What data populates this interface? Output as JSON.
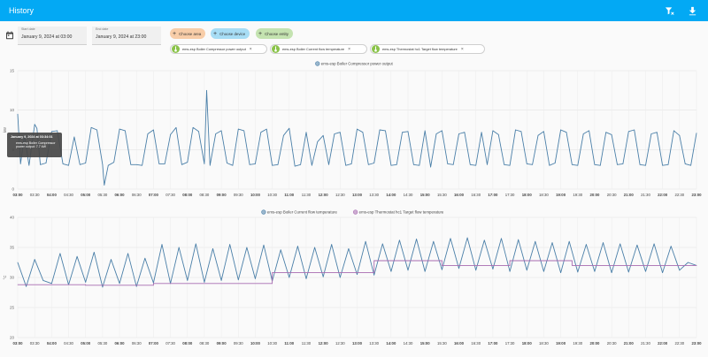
{
  "app": {
    "title": "History",
    "filter_icon": "filter-remove-icon",
    "download_icon": "download-icon"
  },
  "controls": {
    "start_label": "Start date",
    "start_value": "January 9, 2024 at 03:00",
    "end_label": "End date",
    "end_value": "January 9, 2024 at 23:00",
    "choose_area": "Choose area",
    "choose_device": "Choose device",
    "choose_entity": "Choose entity",
    "tags": [
      "ems-esp Boiler Compressor power output",
      "ems-esp Boiler Current flow temperature",
      "ems-esp Thermostat hc1 Target flow temperature"
    ],
    "colors": {
      "area": "#f8cda8",
      "device": "#a7ddf5",
      "entity": "#c4e3b0",
      "tag_icon": "#8bc34a"
    }
  },
  "tooltip": {
    "date": "January 9, 2024 at 03:34:01",
    "line1": "ems-esp Boiler Compressor",
    "line2": "power output: 7.7 kW"
  },
  "chart_data": [
    {
      "type": "line",
      "title": "",
      "ylabel": "kW",
      "ylim": [
        0,
        15
      ],
      "yticks": [
        "0",
        "5",
        "10",
        "15"
      ],
      "xlim": [
        "03:00",
        "23:00"
      ],
      "xticks": [
        "03:00",
        "03:30",
        "04:00",
        "04:30",
        "05:00",
        "05:30",
        "06:00",
        "06:30",
        "07:00",
        "07:30",
        "08:00",
        "08:30",
        "09:00",
        "09:30",
        "10:00",
        "10:30",
        "11:00",
        "11:30",
        "12:00",
        "12:30",
        "13:00",
        "13:30",
        "14:00",
        "14:30",
        "15:00",
        "15:30",
        "16:00",
        "16:30",
        "17:00",
        "17:30",
        "18:00",
        "18:30",
        "19:00",
        "19:30",
        "20:00",
        "20:30",
        "21:00",
        "21:30",
        "22:00",
        "22:30",
        "23:00"
      ],
      "bold_ticks": [
        "03:00",
        "04:00",
        "05:00",
        "06:00",
        "07:00",
        "08:00",
        "09:00",
        "10:00",
        "11:00",
        "12:00",
        "13:00",
        "14:00",
        "15:00",
        "16:00",
        "17:00",
        "18:00",
        "19:00",
        "20:00",
        "21:00",
        "22:00",
        "23:00"
      ],
      "grid": true,
      "series": [
        {
          "name": "ems-esp Boiler Compressor power output",
          "color": "#4a7fa8",
          "x": [
            "03:00",
            "03:05",
            "03:12",
            "03:20",
            "03:30",
            "03:34",
            "03:40",
            "03:50",
            "04:00",
            "04:10",
            "04:20",
            "04:30",
            "04:40",
            "04:50",
            "05:00",
            "05:10",
            "05:20",
            "05:30",
            "05:33",
            "05:40",
            "05:50",
            "06:00",
            "06:10",
            "06:20",
            "06:30",
            "06:40",
            "06:50",
            "07:00",
            "07:10",
            "07:20",
            "07:30",
            "07:40",
            "07:50",
            "08:00",
            "08:10",
            "08:20",
            "08:30",
            "08:34",
            "08:40",
            "08:50",
            "09:00",
            "09:10",
            "09:20",
            "09:30",
            "09:40",
            "09:50",
            "10:00",
            "10:10",
            "10:20",
            "10:30",
            "10:40",
            "10:50",
            "11:00",
            "11:10",
            "11:20",
            "11:30",
            "11:40",
            "11:50",
            "12:00",
            "12:10",
            "12:20",
            "12:30",
            "12:40",
            "12:50",
            "13:00",
            "13:10",
            "13:20",
            "13:30",
            "13:40",
            "13:50",
            "14:00",
            "14:10",
            "14:20",
            "14:30",
            "14:40",
            "14:50",
            "15:00",
            "15:10",
            "15:20",
            "15:30",
            "15:40",
            "15:50",
            "16:00",
            "16:10",
            "16:20",
            "16:30",
            "16:40",
            "16:50",
            "17:00",
            "17:10",
            "17:20",
            "17:30",
            "17:40",
            "17:50",
            "18:00",
            "18:10",
            "18:20",
            "18:30",
            "18:40",
            "18:50",
            "19:00",
            "19:10",
            "19:20",
            "19:30",
            "19:40",
            "19:50",
            "20:00",
            "20:10",
            "20:20",
            "20:30",
            "20:40",
            "20:50",
            "21:00",
            "21:10",
            "21:20",
            "21:30",
            "21:40",
            "21:50",
            "22:00",
            "22:10",
            "22:20",
            "22:30",
            "22:40",
            "22:50",
            "23:00"
          ],
          "y": [
            9.5,
            3.2,
            6.8,
            3.0,
            8.2,
            7.7,
            3.1,
            3.3,
            7.3,
            7.4,
            3.2,
            3.0,
            6.6,
            3.1,
            3.3,
            7.8,
            7.5,
            3.1,
            0.5,
            3.0,
            3.4,
            7.6,
            7.4,
            3.1,
            3.1,
            3.0,
            7.0,
            7.5,
            3.2,
            3.2,
            6.9,
            7.8,
            3.1,
            3.4,
            7.8,
            7.3,
            3.2,
            12.5,
            3.0,
            7.0,
            7.4,
            3.3,
            3.0,
            7.6,
            7.4,
            3.1,
            3.2,
            7.2,
            7.6,
            3.0,
            3.1,
            6.8,
            7.7,
            2.9,
            3.1,
            7.2,
            3.0,
            6.0,
            6.8,
            3.1,
            7.0,
            7.2,
            3.0,
            3.2,
            7.6,
            7.2,
            3.1,
            3.3,
            7.5,
            7.4,
            3.0,
            3.1,
            7.2,
            7.3,
            3.1,
            3.0,
            7.4,
            2.8,
            7.0,
            7.4,
            3.2,
            3.1,
            7.0,
            7.2,
            3.1,
            3.0,
            7.2,
            3.1,
            7.4,
            6.9,
            3.1,
            3.0,
            7.5,
            7.3,
            3.2,
            3.1,
            6.8,
            7.3,
            3.0,
            3.3,
            7.5,
            7.2,
            3.1,
            3.0,
            7.0,
            7.4,
            3.1,
            3.0,
            7.2,
            6.9,
            3.1,
            3.2,
            7.3,
            7.5,
            3.1,
            3.0,
            7.0,
            7.2,
            3.0,
            3.1,
            7.4,
            6.8,
            3.2,
            3.0,
            7.1
          ]
        }
      ]
    },
    {
      "type": "line",
      "title": "",
      "ylabel": "°C",
      "ylim": [
        20,
        40
      ],
      "yticks": [
        "20",
        "25",
        "30",
        "35",
        "40"
      ],
      "xlim": [
        "03:00",
        "23:00"
      ],
      "grid": true,
      "series": [
        {
          "name": "ems-esp Boiler Current flow temperature",
          "color": "#4a7fa8",
          "x": [
            "03:00",
            "03:15",
            "03:30",
            "03:45",
            "04:00",
            "04:15",
            "04:30",
            "04:45",
            "05:00",
            "05:15",
            "05:30",
            "05:45",
            "06:00",
            "06:15",
            "06:30",
            "06:45",
            "07:00",
            "07:15",
            "07:30",
            "07:45",
            "08:00",
            "08:15",
            "08:30",
            "08:45",
            "09:00",
            "09:15",
            "09:30",
            "09:45",
            "10:00",
            "10:15",
            "10:30",
            "10:45",
            "11:00",
            "11:15",
            "11:30",
            "11:45",
            "12:00",
            "12:15",
            "12:30",
            "12:45",
            "13:00",
            "13:15",
            "13:30",
            "13:45",
            "14:00",
            "14:15",
            "14:30",
            "14:45",
            "15:00",
            "15:15",
            "15:30",
            "15:45",
            "16:00",
            "16:15",
            "16:30",
            "16:45",
            "17:00",
            "17:15",
            "17:30",
            "17:45",
            "18:00",
            "18:15",
            "18:30",
            "18:45",
            "19:00",
            "19:15",
            "19:30",
            "19:45",
            "20:00",
            "20:15",
            "20:30",
            "20:45",
            "21:00",
            "21:15",
            "21:30",
            "21:45",
            "22:00",
            "22:15",
            "22:30",
            "22:45",
            "23:00"
          ],
          "y": [
            32.5,
            28.5,
            33.0,
            29.5,
            29.0,
            34.0,
            28.8,
            33.5,
            29.2,
            34.2,
            28.4,
            33.0,
            29.0,
            34.0,
            28.5,
            33.2,
            29.1,
            35.5,
            29.0,
            35.0,
            29.5,
            35.6,
            29.2,
            34.8,
            29.5,
            35.5,
            29.6,
            35.0,
            29.8,
            35.4,
            29.4,
            34.6,
            30.0,
            35.2,
            29.8,
            35.0,
            30.1,
            35.5,
            30.0,
            34.8,
            30.5,
            36.0,
            30.4,
            35.6,
            31.0,
            36.2,
            31.2,
            36.4,
            31.0,
            36.0,
            31.3,
            36.5,
            31.5,
            36.6,
            31.2,
            36.2,
            31.4,
            36.5,
            31.0,
            36.3,
            31.2,
            36.0,
            31.0,
            35.8,
            30.8,
            36.0,
            30.9,
            35.5,
            31.0,
            35.8,
            30.8,
            35.6,
            30.9,
            35.4,
            31.0,
            35.6,
            30.8,
            35.2,
            31.2,
            32.5,
            32.0
          ]
        },
        {
          "name": "ems-esp Thermostat hc1 Target flow temperature",
          "color": "#a86bb0",
          "x": [
            "03:00",
            "05:00",
            "05:00",
            "07:00",
            "07:00",
            "10:30",
            "10:30",
            "13:30",
            "13:30",
            "15:30",
            "15:30",
            "17:30",
            "17:30",
            "19:20",
            "19:20",
            "23:00"
          ],
          "y": [
            28.8,
            28.8,
            28.7,
            28.7,
            29.0,
            29.0,
            30.8,
            30.8,
            32.8,
            32.8,
            32.0,
            32.0,
            32.8,
            32.8,
            32.0,
            32.0
          ]
        }
      ]
    }
  ]
}
